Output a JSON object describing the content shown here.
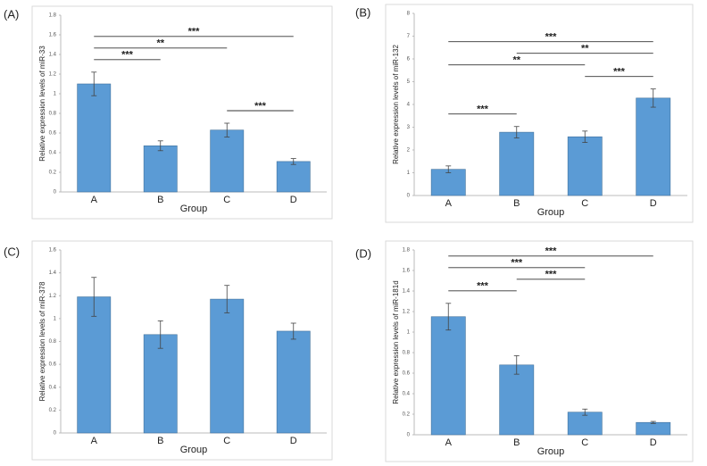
{
  "chart_data": [
    {
      "type": "bar",
      "panel_label": "(A)",
      "ylabel": "Relative expression levels of miR-33",
      "xlabel": "Group",
      "categories": [
        "A",
        "B",
        "C",
        "D"
      ],
      "values": [
        1.1,
        0.47,
        0.63,
        0.31
      ],
      "errors": [
        0.12,
        0.05,
        0.07,
        0.03
      ],
      "color": "#5b9bd5",
      "ylim": [
        0,
        1.8
      ],
      "yticks": [
        0,
        0.2,
        0.4,
        0.6,
        0.8,
        1,
        1.2,
        1.4,
        1.6,
        1.8
      ],
      "annotations": [
        {
          "between": [
            "A",
            "D"
          ],
          "label": "***"
        },
        {
          "between": [
            "A",
            "C"
          ],
          "label": "**"
        },
        {
          "between": [
            "A",
            "B"
          ],
          "label": "***"
        },
        {
          "between": [
            "C",
            "D"
          ],
          "label": "***"
        }
      ]
    },
    {
      "type": "bar",
      "panel_label": "(B)",
      "ylabel": "Relative expression levels of miR-132",
      "xlabel": "Group",
      "categories": [
        "A",
        "B",
        "C",
        "D"
      ],
      "values": [
        1.15,
        2.78,
        2.58,
        4.28
      ],
      "errors": [
        0.15,
        0.25,
        0.25,
        0.4
      ],
      "color": "#5b9bd5",
      "ylim": [
        0,
        8
      ],
      "yticks": [
        0,
        1,
        2,
        3,
        4,
        5,
        6,
        7,
        8
      ],
      "annotations": [
        {
          "between": [
            "A",
            "D"
          ],
          "label": "***"
        },
        {
          "between": [
            "A",
            "C"
          ],
          "label": "**"
        },
        {
          "between": [
            "B",
            "D"
          ],
          "label": "**"
        },
        {
          "between": [
            "C",
            "D"
          ],
          "label": "***"
        },
        {
          "between": [
            "A",
            "B"
          ],
          "label": "***"
        }
      ]
    },
    {
      "type": "bar",
      "panel_label": "(C)",
      "ylabel": "Relative expression levels of miR-378",
      "xlabel": "Group",
      "categories": [
        "A",
        "B",
        "C",
        "D"
      ],
      "values": [
        1.19,
        0.86,
        1.17,
        0.89
      ],
      "errors": [
        0.17,
        0.12,
        0.12,
        0.07
      ],
      "color": "#5b9bd5",
      "ylim": [
        0,
        1.6
      ],
      "yticks": [
        0,
        0.2,
        0.4,
        0.6,
        0.8,
        1,
        1.2,
        1.4,
        1.6
      ],
      "annotations": []
    },
    {
      "type": "bar",
      "panel_label": "(D)",
      "ylabel": "Relative expression levels of miR-181d",
      "xlabel": "Group",
      "categories": [
        "A",
        "B",
        "C",
        "D"
      ],
      "values": [
        1.15,
        0.68,
        0.22,
        0.12
      ],
      "errors": [
        0.13,
        0.09,
        0.03,
        0.01
      ],
      "color": "#5b9bd5",
      "ylim": [
        0,
        1.8
      ],
      "yticks": [
        0,
        0.2,
        0.4,
        0.6,
        0.8,
        1,
        1.2,
        1.4,
        1.6,
        1.8
      ],
      "annotations": [
        {
          "between": [
            "A",
            "D"
          ],
          "label": "***"
        },
        {
          "between": [
            "A",
            "C"
          ],
          "label": "***"
        },
        {
          "between": [
            "A",
            "B"
          ],
          "label": "***"
        },
        {
          "between": [
            "B",
            "C"
          ],
          "label": "***"
        }
      ]
    }
  ]
}
